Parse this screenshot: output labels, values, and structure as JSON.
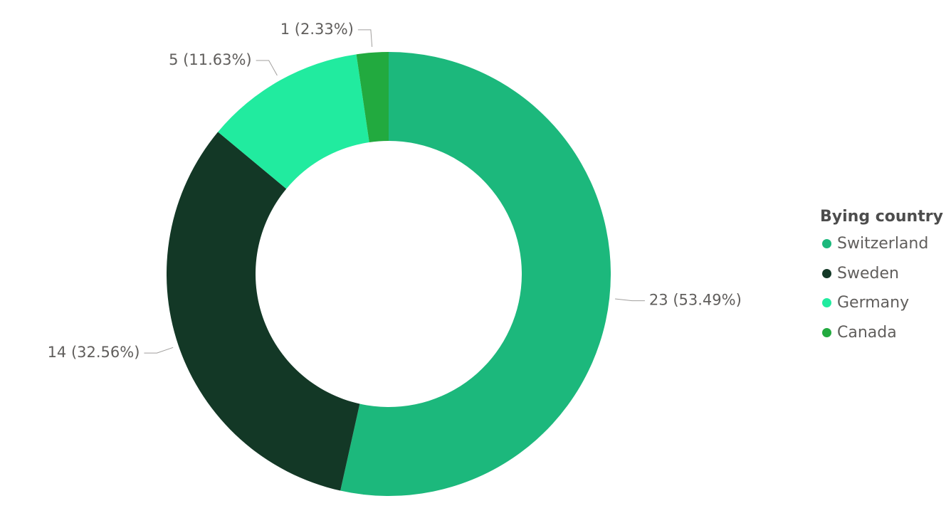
{
  "chart_data": {
    "type": "pie",
    "variant": "donut",
    "legend": {
      "title": "Bying country",
      "placement": "right"
    },
    "slices": [
      {
        "label": "Switzerland",
        "value": 23,
        "data_label": "23 (53.49%)",
        "color": "#1cb87c"
      },
      {
        "label": "Sweden",
        "value": 14,
        "data_label": "14 (32.56%)",
        "color": "#133826"
      },
      {
        "label": "Germany",
        "value": 5,
        "data_label": "5 (11.63%)",
        "color": "#21eb9f"
      },
      {
        "label": "Canada",
        "value": 1,
        "data_label": "1 (2.33%)",
        "color": "#22aa3f"
      }
    ]
  }
}
